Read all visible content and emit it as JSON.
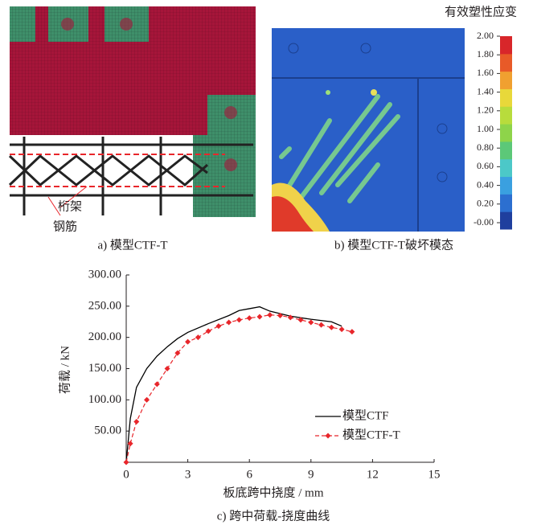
{
  "panel_a": {
    "caption": "a) 模型CTF-T",
    "labels": [
      "桁架",
      "钢筋"
    ]
  },
  "panel_b": {
    "caption": "b) 模型CTF-T破坏模态",
    "colorbar_title": "有效塑性应变",
    "colorbar_lim": [
      0,
      2
    ],
    "colorbar_ticks": [
      {
        "value": 2,
        "label": "2.00"
      },
      {
        "value": 1.8,
        "label": "1.80"
      },
      {
        "value": 1.6,
        "label": "1.60"
      },
      {
        "value": 1.4,
        "label": "1.40"
      },
      {
        "value": 1.2,
        "label": "1.20"
      },
      {
        "value": 1,
        "label": "1.00"
      },
      {
        "value": 0.8,
        "label": "0.80"
      },
      {
        "value": 0.6,
        "label": "0.60"
      },
      {
        "value": 0.4,
        "label": "0.40"
      },
      {
        "value": 0.2,
        "label": "0.20"
      },
      {
        "value": 0,
        "label": "-0.00"
      }
    ]
  },
  "chart_data": {
    "type": "line",
    "caption": "c) 跨中荷载-挠度曲线",
    "xlabel": "板底跨中挠度 / mm",
    "ylabel": "荷载 / kN",
    "xlim": [
      0,
      15
    ],
    "ylim": [
      0,
      300
    ],
    "xticks": [
      0,
      3,
      6,
      9,
      12,
      15
    ],
    "yticks": [
      {
        "value": 50,
        "label": "50.00"
      },
      {
        "value": 100,
        "label": "100.00"
      },
      {
        "value": 150,
        "label": "150.00"
      },
      {
        "value": 200,
        "label": "200.00"
      },
      {
        "value": 250,
        "label": "250.00"
      },
      {
        "value": 300,
        "label": "300.00"
      }
    ],
    "series": [
      {
        "name": "模型CTF",
        "color": "#000000",
        "dashed": false,
        "marker": null,
        "x": [
          0,
          0.2,
          0.5,
          1,
          1.5,
          2,
          2.5,
          3,
          4,
          5,
          5.5,
          6,
          6.5,
          7,
          7.5,
          8,
          9,
          10,
          10.5
        ],
        "values": [
          0,
          70,
          120,
          150,
          170,
          185,
          198,
          208,
          222,
          235,
          243,
          246,
          249,
          242,
          238,
          234,
          229,
          225,
          218
        ]
      },
      {
        "name": "模型CTF-T",
        "color": "#e8262b",
        "dashed": true,
        "marker": "diamond",
        "x": [
          0,
          0.2,
          0.5,
          1,
          1.5,
          2,
          2.5,
          3,
          3.5,
          4,
          4.5,
          5,
          5.5,
          6,
          6.5,
          7,
          7.5,
          8,
          8.5,
          9,
          9.5,
          10,
          10.5,
          11
        ],
        "values": [
          0,
          30,
          65,
          100,
          125,
          150,
          175,
          193,
          200,
          210,
          218,
          224,
          228,
          231,
          233,
          236,
          235,
          232,
          228,
          224,
          220,
          216,
          213,
          209
        ]
      }
    ],
    "legend": "lower right"
  }
}
